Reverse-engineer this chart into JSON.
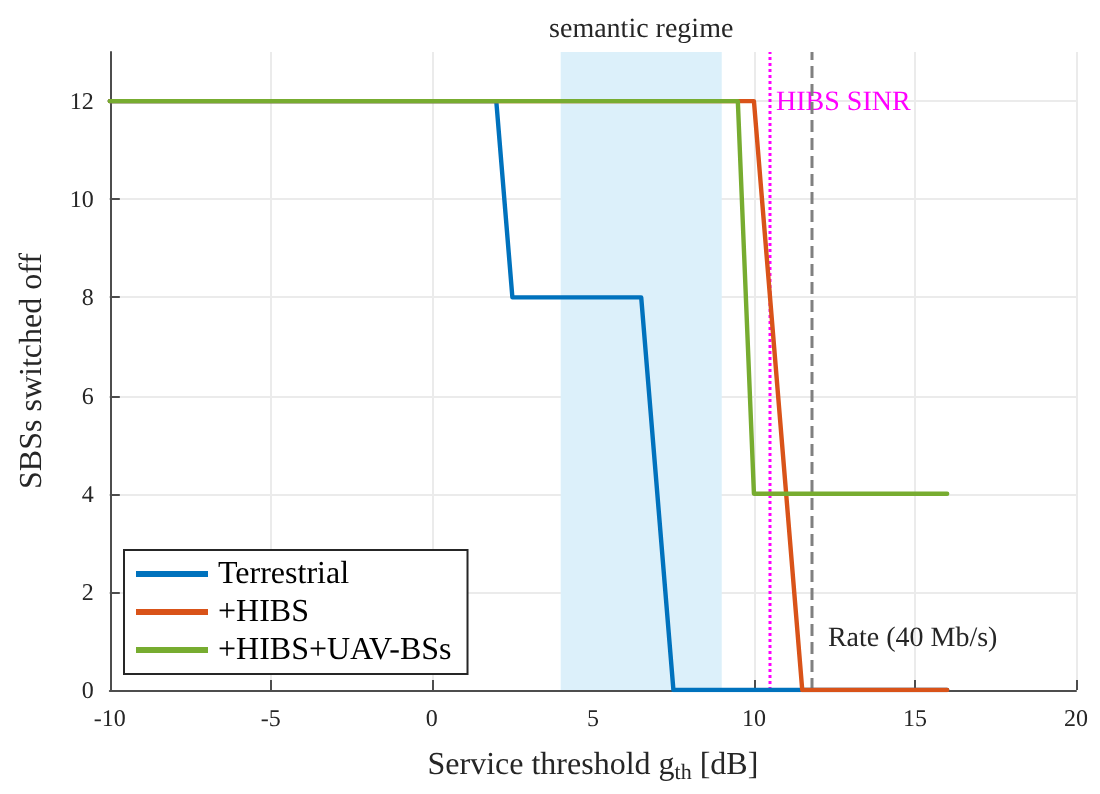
{
  "chart_data": {
    "type": "line",
    "xlabel": "Service threshold g$_{th}$ [dB]",
    "ylabel": "SBSs switched off",
    "xlim": [
      -10,
      20
    ],
    "xticks": [
      -10,
      -5,
      0,
      5,
      10,
      15,
      20
    ],
    "ylim": [
      0,
      13
    ],
    "yticks": [
      0,
      2,
      4,
      6,
      8,
      10,
      12
    ],
    "grid": true,
    "legend": "bottom left",
    "marker": "none",
    "line_style": "solid",
    "series": [
      {
        "name": "Terrestrial",
        "color": "#0072bd",
        "x": [
          -10,
          2,
          2.5,
          6.5,
          7.5,
          16
        ],
        "values": [
          12,
          12,
          8,
          8,
          0,
          0
        ]
      },
      {
        "name": "+HIBS",
        "color": "#d95319",
        "x": [
          -10,
          10,
          11.5,
          16
        ],
        "values": [
          12,
          12,
          0,
          0
        ]
      },
      {
        "name": "+HIBS+UAV-BSs",
        "color": "#77ac30",
        "x": [
          -10,
          9.5,
          10,
          16
        ],
        "values": [
          12,
          12,
          4,
          4
        ]
      }
    ],
    "bands": [
      {
        "axis": "x",
        "from": 4,
        "to": 9,
        "label": "semantic regime",
        "color": "#dcf0fa"
      }
    ],
    "ref_lines": [
      {
        "axis": "x",
        "value": 10.5,
        "label": "HIBS SINR",
        "color": "#ff00ff",
        "line_style": "dotted"
      },
      {
        "axis": "x",
        "value": 11.8,
        "label": "Rate (40 Mb/s)",
        "color": "#808080",
        "line_style": "dashed"
      }
    ]
  }
}
